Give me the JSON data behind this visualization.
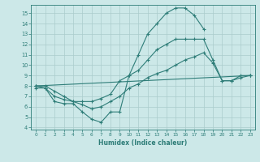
{
  "line1_x": [
    0,
    1,
    2,
    3,
    4,
    5,
    6,
    7,
    8,
    9,
    10,
    11,
    12,
    13,
    14,
    15,
    16,
    17,
    18
  ],
  "line1_y": [
    8.0,
    7.8,
    6.5,
    6.3,
    6.3,
    5.5,
    4.8,
    4.5,
    5.5,
    5.5,
    9.0,
    11.0,
    13.0,
    14.0,
    15.0,
    15.5,
    15.5,
    14.8,
    13.5
  ],
  "line2_x": [
    0,
    1,
    2,
    3,
    4,
    5,
    6,
    7,
    8,
    9,
    10,
    11,
    12,
    13,
    14,
    15,
    16,
    17,
    18,
    19,
    20,
    21,
    22,
    23
  ],
  "line2_y": [
    8.0,
    8.0,
    7.5,
    7.0,
    6.5,
    6.5,
    6.5,
    6.8,
    7.2,
    8.5,
    9.0,
    9.5,
    10.5,
    11.5,
    12.0,
    12.5,
    12.5,
    12.5,
    12.5,
    10.5,
    8.5,
    8.5,
    9.0,
    9.0
  ],
  "line3_x": [
    0,
    23
  ],
  "line3_y": [
    8.0,
    9.0
  ],
  "line4_x": [
    0,
    1,
    2,
    3,
    4,
    5,
    6,
    7,
    8,
    9,
    10,
    11,
    12,
    13,
    14,
    15,
    16,
    17,
    18,
    19,
    20,
    21,
    22,
    23
  ],
  "line4_y": [
    7.8,
    7.8,
    7.0,
    6.7,
    6.5,
    6.2,
    5.8,
    6.0,
    6.5,
    7.0,
    7.8,
    8.2,
    8.8,
    9.2,
    9.5,
    10.0,
    10.5,
    10.8,
    11.2,
    10.2,
    8.5,
    8.5,
    8.8,
    9.0
  ],
  "color": "#2e7d78",
  "bg_color": "#cce8e8",
  "grid_color": "#aacccc",
  "xlabel": "Humidex (Indice chaleur)",
  "xlim": [
    -0.5,
    23.5
  ],
  "ylim": [
    3.8,
    15.8
  ],
  "yticks": [
    4,
    5,
    6,
    7,
    8,
    9,
    10,
    11,
    12,
    13,
    14,
    15
  ],
  "xticks": [
    0,
    1,
    2,
    3,
    4,
    5,
    6,
    7,
    8,
    9,
    10,
    11,
    12,
    13,
    14,
    15,
    16,
    17,
    18,
    19,
    20,
    21,
    22,
    23
  ]
}
